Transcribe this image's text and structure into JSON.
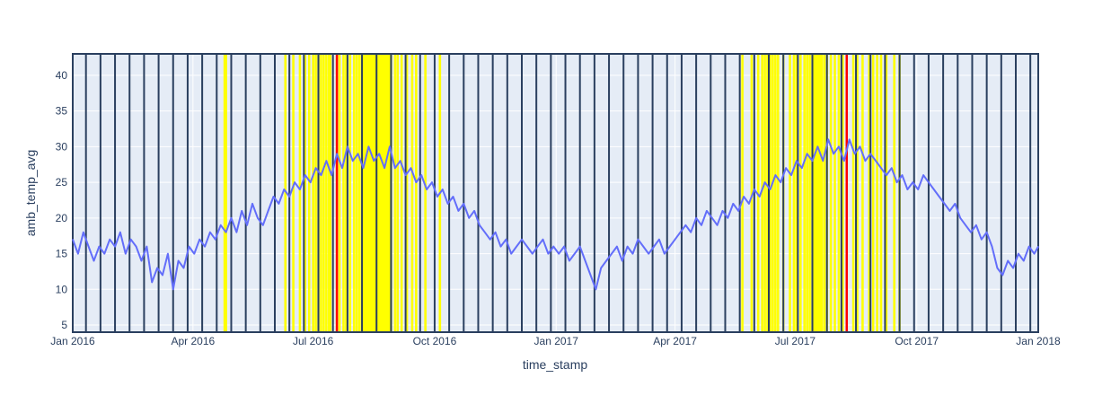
{
  "chart_data": {
    "type": "line",
    "xlabel": "time_stamp",
    "ylabel": "amb_temp_avg",
    "xlim": [
      "2016-01-01",
      "2018-01-01"
    ],
    "ylim": [
      4,
      43
    ],
    "x_ticks": [
      {
        "date": "2016-01-01",
        "label": "Jan 2016"
      },
      {
        "date": "2016-04-01",
        "label": "Apr 2016"
      },
      {
        "date": "2016-07-01",
        "label": "Jul 2016"
      },
      {
        "date": "2016-10-01",
        "label": "Oct 2016"
      },
      {
        "date": "2017-01-01",
        "label": "Jan 2017"
      },
      {
        "date": "2017-04-01",
        "label": "Apr 2017"
      },
      {
        "date": "2017-07-01",
        "label": "Jul 2017"
      },
      {
        "date": "2017-10-01",
        "label": "Oct 2017"
      },
      {
        "date": "2018-01-01",
        "label": "Jan 2018"
      }
    ],
    "y_ticks": [
      5,
      10,
      15,
      20,
      25,
      30,
      35,
      40
    ],
    "grid": true,
    "colors": {
      "background": "#e5ecf6",
      "grid": "#ffffff",
      "series": "#636efa",
      "weekly_marker": "#2a3f5f",
      "warning_marker": "#ffff00",
      "alarm_marker": "#ff0000"
    },
    "series": [
      {
        "points": [
          [
            "2016-01-01",
            17
          ],
          [
            "2016-01-05",
            15
          ],
          [
            "2016-01-09",
            18
          ],
          [
            "2016-01-13",
            16
          ],
          [
            "2016-01-17",
            14
          ],
          [
            "2016-01-21",
            16
          ],
          [
            "2016-01-25",
            15
          ],
          [
            "2016-01-29",
            17
          ],
          [
            "2016-02-02",
            16
          ],
          [
            "2016-02-06",
            18
          ],
          [
            "2016-02-10",
            15
          ],
          [
            "2016-02-14",
            17
          ],
          [
            "2016-02-18",
            16
          ],
          [
            "2016-02-22",
            14
          ],
          [
            "2016-02-26",
            16
          ],
          [
            "2016-03-01",
            11
          ],
          [
            "2016-03-05",
            13
          ],
          [
            "2016-03-09",
            12
          ],
          [
            "2016-03-13",
            15
          ],
          [
            "2016-03-17",
            10
          ],
          [
            "2016-03-21",
            14
          ],
          [
            "2016-03-25",
            13
          ],
          [
            "2016-03-29",
            16
          ],
          [
            "2016-04-02",
            15
          ],
          [
            "2016-04-06",
            17
          ],
          [
            "2016-04-10",
            16
          ],
          [
            "2016-04-14",
            18
          ],
          [
            "2016-04-18",
            17
          ],
          [
            "2016-04-22",
            19
          ],
          [
            "2016-04-26",
            18
          ],
          [
            "2016-04-30",
            20
          ],
          [
            "2016-05-04",
            18
          ],
          [
            "2016-05-08",
            21
          ],
          [
            "2016-05-12",
            19
          ],
          [
            "2016-05-16",
            22
          ],
          [
            "2016-05-20",
            20
          ],
          [
            "2016-05-24",
            19
          ],
          [
            "2016-05-28",
            21
          ],
          [
            "2016-06-01",
            23
          ],
          [
            "2016-06-05",
            22
          ],
          [
            "2016-06-09",
            24
          ],
          [
            "2016-06-13",
            23
          ],
          [
            "2016-06-17",
            25
          ],
          [
            "2016-06-21",
            24
          ],
          [
            "2016-06-25",
            26
          ],
          [
            "2016-06-29",
            25
          ],
          [
            "2016-07-03",
            27
          ],
          [
            "2016-07-07",
            26
          ],
          [
            "2016-07-11",
            28
          ],
          [
            "2016-07-15",
            26
          ],
          [
            "2016-07-19",
            29
          ],
          [
            "2016-07-23",
            27
          ],
          [
            "2016-07-27",
            30
          ],
          [
            "2016-07-31",
            28
          ],
          [
            "2016-08-04",
            29
          ],
          [
            "2016-08-08",
            27
          ],
          [
            "2016-08-12",
            30
          ],
          [
            "2016-08-16",
            28
          ],
          [
            "2016-08-20",
            29
          ],
          [
            "2016-08-24",
            27
          ],
          [
            "2016-08-28",
            30
          ],
          [
            "2016-09-01",
            27
          ],
          [
            "2016-09-05",
            28
          ],
          [
            "2016-09-09",
            26
          ],
          [
            "2016-09-13",
            27
          ],
          [
            "2016-09-17",
            25
          ],
          [
            "2016-09-21",
            26
          ],
          [
            "2016-09-25",
            24
          ],
          [
            "2016-09-29",
            25
          ],
          [
            "2016-10-03",
            23
          ],
          [
            "2016-10-07",
            24
          ],
          [
            "2016-10-11",
            22
          ],
          [
            "2016-10-15",
            23
          ],
          [
            "2016-10-19",
            21
          ],
          [
            "2016-10-23",
            22
          ],
          [
            "2016-10-27",
            20
          ],
          [
            "2016-10-31",
            21
          ],
          [
            "2016-11-04",
            19
          ],
          [
            "2016-11-08",
            18
          ],
          [
            "2016-11-12",
            17
          ],
          [
            "2016-11-16",
            18
          ],
          [
            "2016-11-20",
            16
          ],
          [
            "2016-11-24",
            17
          ],
          [
            "2016-11-28",
            15
          ],
          [
            "2016-12-02",
            16
          ],
          [
            "2016-12-06",
            17
          ],
          [
            "2016-12-10",
            16
          ],
          [
            "2016-12-14",
            15
          ],
          [
            "2016-12-18",
            16
          ],
          [
            "2016-12-22",
            17
          ],
          [
            "2016-12-26",
            15
          ],
          [
            "2016-12-30",
            16
          ],
          [
            "2017-01-03",
            15
          ],
          [
            "2017-01-07",
            16
          ],
          [
            "2017-01-11",
            14
          ],
          [
            "2017-01-15",
            15
          ],
          [
            "2017-01-19",
            16
          ],
          [
            "2017-01-23",
            14
          ],
          [
            "2017-01-27",
            12
          ],
          [
            "2017-01-31",
            10
          ],
          [
            "2017-02-04",
            13
          ],
          [
            "2017-02-08",
            14
          ],
          [
            "2017-02-12",
            15
          ],
          [
            "2017-02-16",
            16
          ],
          [
            "2017-02-20",
            14
          ],
          [
            "2017-02-24",
            16
          ],
          [
            "2017-02-28",
            15
          ],
          [
            "2017-03-04",
            17
          ],
          [
            "2017-03-08",
            16
          ],
          [
            "2017-03-12",
            15
          ],
          [
            "2017-03-16",
            16
          ],
          [
            "2017-03-20",
            17
          ],
          [
            "2017-03-24",
            15
          ],
          [
            "2017-03-28",
            16
          ],
          [
            "2017-04-01",
            17
          ],
          [
            "2017-04-05",
            18
          ],
          [
            "2017-04-09",
            19
          ],
          [
            "2017-04-13",
            18
          ],
          [
            "2017-04-17",
            20
          ],
          [
            "2017-04-21",
            19
          ],
          [
            "2017-04-25",
            21
          ],
          [
            "2017-04-29",
            20
          ],
          [
            "2017-05-03",
            19
          ],
          [
            "2017-05-07",
            21
          ],
          [
            "2017-05-11",
            20
          ],
          [
            "2017-05-15",
            22
          ],
          [
            "2017-05-19",
            21
          ],
          [
            "2017-05-23",
            23
          ],
          [
            "2017-05-27",
            22
          ],
          [
            "2017-05-31",
            24
          ],
          [
            "2017-06-04",
            23
          ],
          [
            "2017-06-08",
            25
          ],
          [
            "2017-06-12",
            24
          ],
          [
            "2017-06-16",
            26
          ],
          [
            "2017-06-20",
            25
          ],
          [
            "2017-06-24",
            27
          ],
          [
            "2017-06-28",
            26
          ],
          [
            "2017-07-02",
            28
          ],
          [
            "2017-07-06",
            27
          ],
          [
            "2017-07-10",
            29
          ],
          [
            "2017-07-14",
            28
          ],
          [
            "2017-07-18",
            30
          ],
          [
            "2017-07-22",
            28
          ],
          [
            "2017-07-26",
            31
          ],
          [
            "2017-07-30",
            29
          ],
          [
            "2017-08-03",
            30
          ],
          [
            "2017-08-07",
            28
          ],
          [
            "2017-08-11",
            31
          ],
          [
            "2017-08-15",
            29
          ],
          [
            "2017-08-19",
            30
          ],
          [
            "2017-08-23",
            28
          ],
          [
            "2017-08-27",
            29
          ],
          [
            "2017-08-31",
            28
          ],
          [
            "2017-09-04",
            27
          ],
          [
            "2017-09-08",
            26
          ],
          [
            "2017-09-12",
            27
          ],
          [
            "2017-09-16",
            25
          ],
          [
            "2017-09-20",
            26
          ],
          [
            "2017-09-24",
            24
          ],
          [
            "2017-09-28",
            25
          ],
          [
            "2017-10-02",
            24
          ],
          [
            "2017-10-06",
            26
          ],
          [
            "2017-10-10",
            25
          ],
          [
            "2017-10-14",
            24
          ],
          [
            "2017-10-18",
            23
          ],
          [
            "2017-10-22",
            22
          ],
          [
            "2017-10-26",
            21
          ],
          [
            "2017-10-30",
            22
          ],
          [
            "2017-11-03",
            20
          ],
          [
            "2017-11-07",
            19
          ],
          [
            "2017-11-11",
            18
          ],
          [
            "2017-11-15",
            19
          ],
          [
            "2017-11-19",
            17
          ],
          [
            "2017-11-23",
            18
          ],
          [
            "2017-11-27",
            16
          ],
          [
            "2017-12-01",
            13
          ],
          [
            "2017-12-05",
            12
          ],
          [
            "2017-12-09",
            14
          ],
          [
            "2017-12-13",
            13
          ],
          [
            "2017-12-17",
            15
          ],
          [
            "2017-12-21",
            14
          ],
          [
            "2017-12-25",
            16
          ],
          [
            "2017-12-29",
            15
          ],
          [
            "2018-01-01",
            16
          ]
        ]
      }
    ],
    "vertical_markers": {
      "weekly_dark": [
        "2016-01-11",
        "2016-01-22",
        "2016-02-02",
        "2016-02-13",
        "2016-02-24",
        "2016-03-06",
        "2016-03-17",
        "2016-03-28",
        "2016-04-08",
        "2016-04-19",
        "2016-04-30",
        "2016-05-11",
        "2016-05-22",
        "2016-06-02",
        "2016-06-13",
        "2016-06-24",
        "2016-07-05",
        "2016-07-16",
        "2016-07-27",
        "2016-08-07",
        "2016-08-18",
        "2016-08-29",
        "2016-09-09",
        "2016-09-20",
        "2016-10-01",
        "2016-10-12",
        "2016-10-23",
        "2016-11-03",
        "2016-11-14",
        "2016-11-25",
        "2016-12-06",
        "2016-12-17",
        "2016-12-28",
        "2017-01-08",
        "2017-01-19",
        "2017-01-30",
        "2017-02-10",
        "2017-02-21",
        "2017-03-04",
        "2017-03-15",
        "2017-03-26",
        "2017-04-06",
        "2017-04-17",
        "2017-04-28",
        "2017-05-09",
        "2017-05-20",
        "2017-05-31",
        "2017-06-11",
        "2017-06-22",
        "2017-07-03",
        "2017-07-14",
        "2017-07-25",
        "2017-08-05",
        "2017-08-16",
        "2017-08-27",
        "2017-09-07",
        "2017-09-18",
        "2017-09-29",
        "2017-10-10",
        "2017-10-21",
        "2017-11-01",
        "2017-11-12",
        "2017-11-23",
        "2017-12-04",
        "2017-12-15",
        "2017-12-26"
      ],
      "warning_yellow": [
        "2016-04-25",
        "2016-04-26",
        "2016-06-10",
        "2016-06-16",
        "2016-06-21",
        "2016-06-25",
        "2016-06-28",
        "2016-07-01",
        "2016-07-03",
        "2016-07-05",
        "2016-07-07",
        "2016-07-09",
        "2016-07-11",
        "2016-07-13",
        "2016-07-14",
        "2016-07-19",
        "2016-07-21",
        "2016-07-24",
        "2016-07-26",
        "2016-07-29",
        "2016-08-01",
        "2016-08-03",
        "2016-08-05",
        "2016-08-07",
        "2016-08-08",
        "2016-08-09",
        "2016-08-10",
        "2016-08-11",
        "2016-08-12",
        "2016-08-13",
        "2016-08-14",
        "2016-08-15",
        "2016-08-16",
        "2016-08-17",
        "2016-08-18",
        "2016-08-19",
        "2016-08-20",
        "2016-08-21",
        "2016-08-22",
        "2016-08-23",
        "2016-08-24",
        "2016-08-25",
        "2016-08-26",
        "2016-08-27",
        "2016-08-28",
        "2016-08-29",
        "2016-09-01",
        "2016-09-03",
        "2016-09-06",
        "2016-09-10",
        "2016-09-14",
        "2016-09-17",
        "2016-09-24",
        "2016-10-05",
        "2017-05-22",
        "2017-05-29",
        "2017-06-03",
        "2017-06-06",
        "2017-06-08",
        "2017-06-10",
        "2017-06-12",
        "2017-06-14",
        "2017-06-16",
        "2017-06-18",
        "2017-06-22",
        "2017-06-27",
        "2017-06-30",
        "2017-07-02",
        "2017-07-05",
        "2017-07-08",
        "2017-07-10",
        "2017-07-12",
        "2017-07-14",
        "2017-07-15",
        "2017-07-16",
        "2017-07-17",
        "2017-07-18",
        "2017-07-19",
        "2017-07-20",
        "2017-07-21",
        "2017-07-23",
        "2017-07-25",
        "2017-07-28",
        "2017-07-31",
        "2017-08-03",
        "2017-08-06",
        "2017-08-14",
        "2017-08-17",
        "2017-08-21",
        "2017-08-26",
        "2017-08-29",
        "2017-09-01",
        "2017-09-04",
        "2017-09-08",
        "2017-09-14",
        "2017-09-18"
      ],
      "alarm_red": [
        "2016-07-19",
        "2017-08-09"
      ]
    }
  }
}
